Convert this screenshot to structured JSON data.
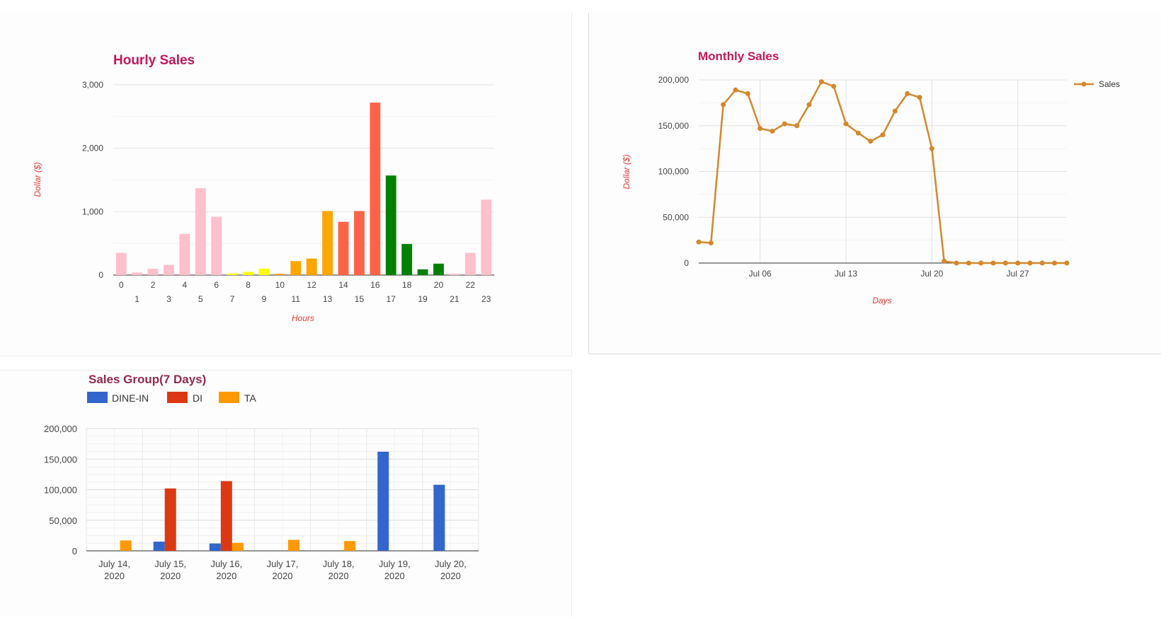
{
  "chart_data": [
    {
      "type": "bar",
      "title": "Hourly Sales",
      "xlabel": "Hours",
      "ylabel": "Dollar ($)",
      "ylim": [
        0,
        3000
      ],
      "yticks": [
        0,
        1000,
        2000,
        3000
      ],
      "ytick_labels": [
        "0",
        "1,000",
        "2,000",
        "3,000"
      ],
      "grid": true,
      "categories": [
        "0",
        "1",
        "2",
        "3",
        "4",
        "5",
        "6",
        "7",
        "8",
        "9",
        "10",
        "11",
        "12",
        "13",
        "14",
        "15",
        "16",
        "17",
        "18",
        "19",
        "20",
        "21",
        "22",
        "23"
      ],
      "values": [
        350,
        40,
        100,
        160,
        650,
        1370,
        920,
        25,
        50,
        100,
        20,
        220,
        260,
        1010,
        840,
        1010,
        2720,
        1570,
        490,
        90,
        180,
        20,
        350,
        1190
      ],
      "colors": [
        "#ffc0cb",
        "#ffc0cb",
        "#ffc0cb",
        "#ffc0cb",
        "#ffc0cb",
        "#ffc0cb",
        "#ffc0cb",
        "#ffff00",
        "#ffff00",
        "#ffff00",
        "#ffa500",
        "#ffa500",
        "#ffa500",
        "#ffa500",
        "#ff6347",
        "#ff6347",
        "#ff6347",
        "#008000",
        "#008000",
        "#008000",
        "#008000",
        "#ffc0cb",
        "#ffc0cb",
        "#ffc0cb"
      ],
      "title_color": "#c2185b",
      "axis_title_color": "#e53935"
    },
    {
      "type": "line",
      "title": "Monthly Sales",
      "xlabel": "Days",
      "ylabel": "Dollar ($)",
      "ylim": [
        0,
        200000
      ],
      "yticks": [
        0,
        50000,
        100000,
        150000,
        200000
      ],
      "ytick_labels": [
        "0",
        "50,000",
        "100,000",
        "150,000",
        "200,000"
      ],
      "xticks": [
        "2020-07-06",
        "2020-07-13",
        "2020-07-20",
        "2020-07-27"
      ],
      "xtick_labels": [
        "Jul 06",
        "Jul 13",
        "Jul 20",
        "Jul 27"
      ],
      "xlim": [
        "2020-07-01",
        "2020-07-31"
      ],
      "grid": true,
      "legend_position": "right",
      "series": [
        {
          "name": "Sales",
          "color": "#d4872c",
          "x": [
            "2020-07-01",
            "2020-07-02",
            "2020-07-03",
            "2020-07-04",
            "2020-07-05",
            "2020-07-06",
            "2020-07-07",
            "2020-07-08",
            "2020-07-09",
            "2020-07-10",
            "2020-07-11",
            "2020-07-12",
            "2020-07-13",
            "2020-07-14",
            "2020-07-15",
            "2020-07-16",
            "2020-07-17",
            "2020-07-18",
            "2020-07-19",
            "2020-07-20",
            "2020-07-21",
            "2020-07-22",
            "2020-07-23",
            "2020-07-24",
            "2020-07-25",
            "2020-07-26",
            "2020-07-27",
            "2020-07-28",
            "2020-07-29",
            "2020-07-30",
            "2020-07-31"
          ],
          "values": [
            23000,
            22000,
            173000,
            189000,
            185000,
            147000,
            144000,
            152000,
            150000,
            173000,
            198000,
            193000,
            152000,
            142000,
            133000,
            140000,
            166000,
            185000,
            181000,
            125000,
            2000,
            0,
            0,
            0,
            0,
            0,
            0,
            0,
            0,
            0,
            0
          ]
        }
      ],
      "title_color": "#c2185b",
      "axis_title_color": "#e53935"
    },
    {
      "type": "bar",
      "title": "Sales Group(7 Days)",
      "ylim": [
        0,
        200000
      ],
      "yticks": [
        0,
        50000,
        100000,
        150000,
        200000
      ],
      "ytick_labels": [
        "0",
        "50,000",
        "100,000",
        "150,000",
        "200,000"
      ],
      "grid": true,
      "legend_position": "top-left",
      "categories": [
        [
          "July 14,",
          "2020"
        ],
        [
          "July 15,",
          "2020"
        ],
        [
          "July 16,",
          "2020"
        ],
        [
          "July 17,",
          "2020"
        ],
        [
          "July 18,",
          "2020"
        ],
        [
          "July 19,",
          "2020"
        ],
        [
          "July 20,",
          "2020"
        ]
      ],
      "series": [
        {
          "name": "DINE-IN",
          "color": "#3366cc",
          "values": [
            0,
            15000,
            12000,
            0,
            0,
            162000,
            108000
          ]
        },
        {
          "name": "DI",
          "color": "#dc3912",
          "values": [
            0,
            102000,
            114000,
            0,
            0,
            0,
            0
          ]
        },
        {
          "name": "TA",
          "color": "#ff9900",
          "values": [
            17000,
            0,
            13000,
            18000,
            16000,
            0,
            0
          ]
        }
      ],
      "title_color": "#8e2a4d"
    }
  ]
}
